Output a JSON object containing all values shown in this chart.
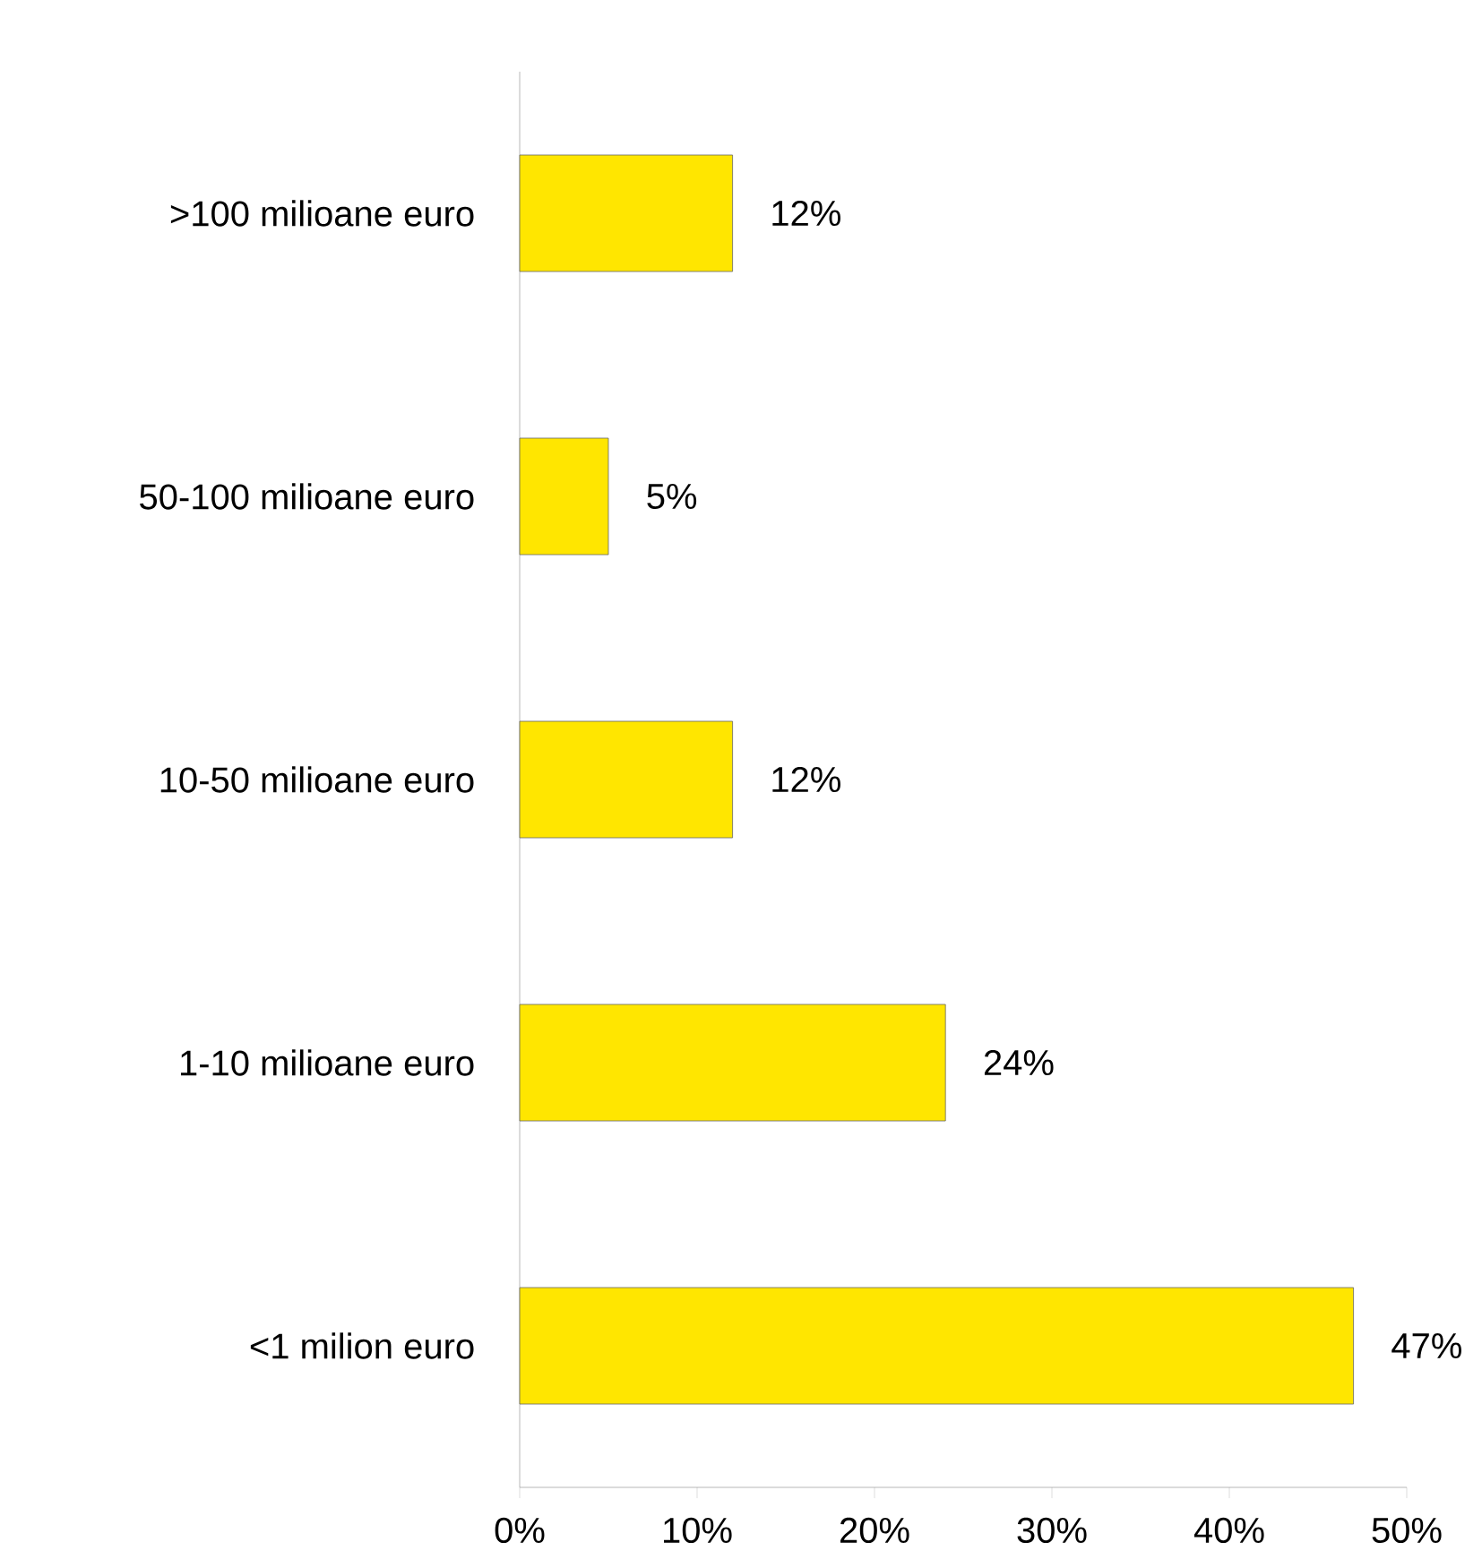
{
  "chart_data": {
    "type": "bar",
    "orientation": "horizontal",
    "categories": [
      ">100 milioane euro",
      "50-100 milioane euro",
      "10-50 milioane euro",
      "1-10 milioane euro",
      "<1 milion euro"
    ],
    "values": [
      12,
      5,
      12,
      24,
      47
    ],
    "value_labels": [
      "12%",
      "5%",
      "12%",
      "24%",
      "47%"
    ],
    "color": "#ffe600",
    "xlim": [
      0,
      50
    ],
    "xticks": [
      {
        "value": 0,
        "label": "0%"
      },
      {
        "value": 10,
        "label": "10%"
      },
      {
        "value": 20,
        "label": "20%"
      },
      {
        "value": 30,
        "label": "30%"
      },
      {
        "value": 40,
        "label": "40%"
      },
      {
        "value": 50,
        "label": "50%"
      }
    ],
    "grid": false
  }
}
